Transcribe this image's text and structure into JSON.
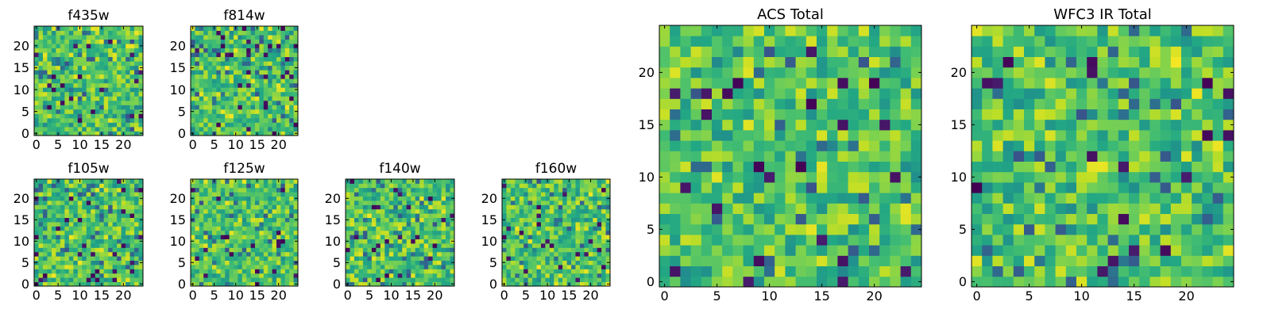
{
  "colormap": "viridis",
  "chart_data": [
    {
      "type": "heatmap",
      "title": "f435w",
      "shape": [
        25,
        25
      ],
      "xticks": [
        0,
        5,
        10,
        15,
        20
      ],
      "yticks": [
        0,
        5,
        10,
        15,
        20
      ],
      "xlim": [
        -0.5,
        24.5
      ],
      "ylim": [
        -0.5,
        24.5
      ],
      "values_note": "",
      "seed": 11
    },
    {
      "type": "heatmap",
      "title": "f814w",
      "shape": [
        25,
        25
      ],
      "xticks": [
        0,
        5,
        10,
        15,
        20
      ],
      "yticks": [
        0,
        5,
        10,
        15,
        20
      ],
      "xlim": [
        -0.5,
        24.5
      ],
      "ylim": [
        -0.5,
        24.5
      ],
      "seed": 23
    },
    {
      "type": "heatmap",
      "title": "f105w",
      "shape": [
        25,
        25
      ],
      "xticks": [
        0,
        5,
        10,
        15,
        20
      ],
      "yticks": [
        0,
        5,
        10,
        15,
        20
      ],
      "xlim": [
        -0.5,
        24.5
      ],
      "ylim": [
        -0.5,
        24.5
      ],
      "seed": 37
    },
    {
      "type": "heatmap",
      "title": "f125w",
      "shape": [
        25,
        25
      ],
      "xticks": [
        0,
        5,
        10,
        15,
        20
      ],
      "yticks": [
        0,
        5,
        10,
        15,
        20
      ],
      "xlim": [
        -0.5,
        24.5
      ],
      "ylim": [
        -0.5,
        24.5
      ],
      "seed": 41
    },
    {
      "type": "heatmap",
      "title": "f140w",
      "shape": [
        25,
        25
      ],
      "xticks": [
        0,
        5,
        10,
        15,
        20
      ],
      "yticks": [
        0,
        5,
        10,
        15,
        20
      ],
      "xlim": [
        -0.5,
        24.5
      ],
      "ylim": [
        -0.5,
        24.5
      ],
      "seed": 53
    },
    {
      "type": "heatmap",
      "title": "f160w",
      "shape": [
        25,
        25
      ],
      "xticks": [
        0,
        5,
        10,
        15,
        20
      ],
      "yticks": [
        0,
        5,
        10,
        15,
        20
      ],
      "xlim": [
        -0.5,
        24.5
      ],
      "ylim": [
        -0.5,
        24.5
      ],
      "seed": 67
    },
    {
      "type": "heatmap",
      "title": "ACS Total",
      "shape": [
        25,
        25
      ],
      "xticks": [
        0,
        5,
        10,
        15,
        20
      ],
      "yticks": [
        0,
        5,
        10,
        15,
        20
      ],
      "xlim": [
        -0.5,
        24.5
      ],
      "ylim": [
        -0.5,
        24.5
      ],
      "seed": 79
    },
    {
      "type": "heatmap",
      "title": "WFC3 IR Total",
      "shape": [
        25,
        25
      ],
      "xticks": [
        0,
        5,
        10,
        15,
        20
      ],
      "yticks": [
        0,
        5,
        10,
        15,
        20
      ],
      "xlim": [
        -0.5,
        24.5
      ],
      "ylim": [
        -0.5,
        24.5
      ],
      "seed": 97
    }
  ]
}
